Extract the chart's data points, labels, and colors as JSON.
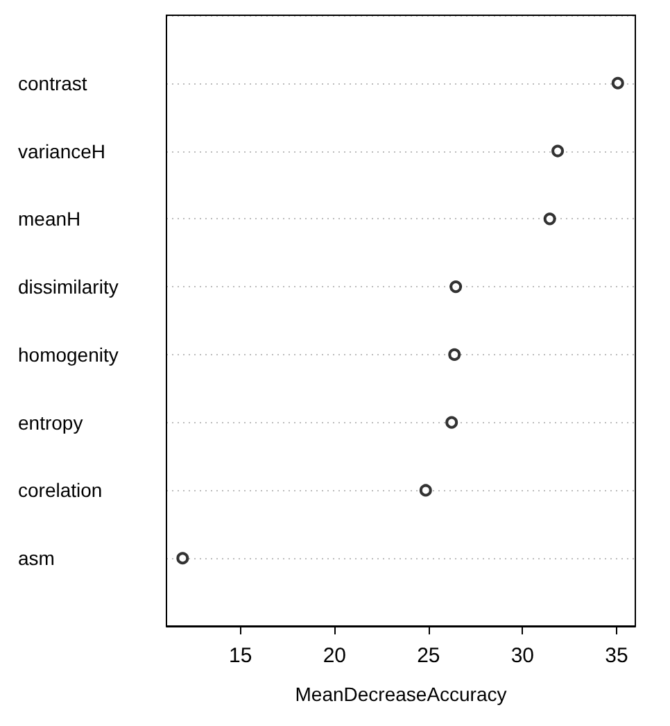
{
  "chart_data": {
    "type": "scatter",
    "orientation": "horizontal",
    "xlabel": "MeanDecreaseAccuracy",
    "categories": [
      "contrast",
      "varianceH",
      "meanH",
      "dissimilarity",
      "homogenity",
      "entropy",
      "corelation",
      "asm"
    ],
    "values": [
      35.07,
      31.87,
      31.45,
      26.45,
      26.38,
      26.23,
      24.85,
      11.92
    ],
    "color": "#000000",
    "marker": "circle",
    "grid": "y",
    "xlim": [
      11.06,
      36
    ],
    "xticks": [
      15,
      20,
      25,
      30,
      35
    ]
  }
}
